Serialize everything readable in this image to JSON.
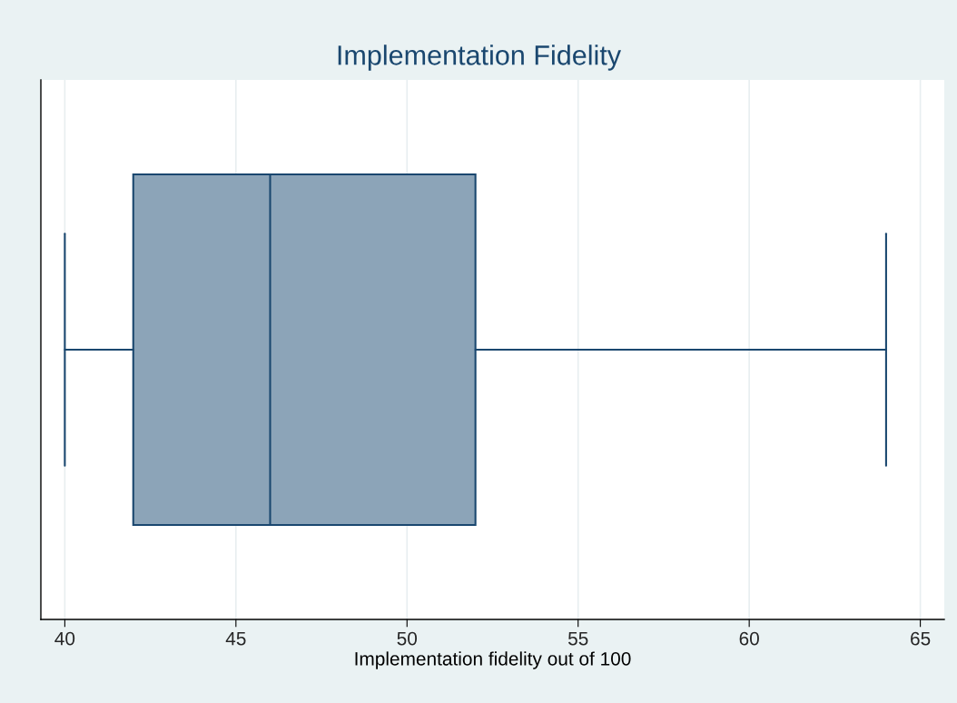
{
  "chart_data": {
    "type": "box",
    "title": "Implementation Fidelity",
    "xlabel": "Implementation fidelity out of 100",
    "orientation": "horizontal",
    "categories": [
      null
    ],
    "boxes": [
      {
        "low": 40,
        "q1": 42,
        "median": 46,
        "q3": 52,
        "high": 64
      }
    ],
    "color": "#8ca4b8",
    "xlim": [
      39.3,
      65.7
    ],
    "xticks": [
      40,
      45,
      50,
      55,
      60,
      65
    ],
    "grid": "x",
    "tick_labels": "x"
  }
}
